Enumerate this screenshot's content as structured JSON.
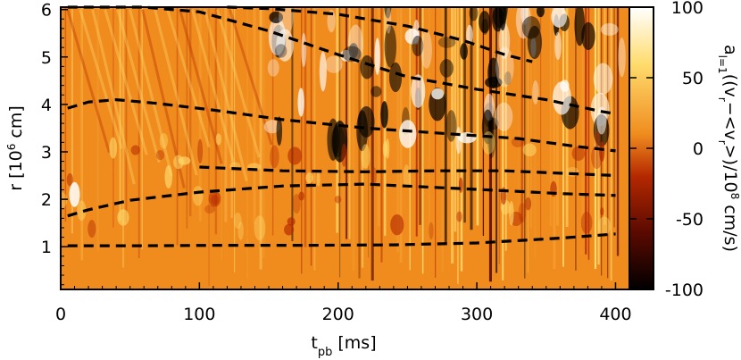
{
  "chart_data": {
    "type": "heatmap",
    "xlabel": "t_pb [ms]",
    "ylabel": "r [10^6 cm]",
    "colorbar_label": "a_l=1((v_r-<v_r>)/10^8 cm/s)",
    "x_ticks": [
      0,
      100,
      200,
      300,
      400
    ],
    "y_ticks": [
      1,
      2,
      3,
      4,
      5,
      6
    ],
    "colorbar_ticks": [
      100,
      50,
      0,
      -50,
      -100
    ],
    "xlim": [
      0,
      410
    ],
    "ylim": [
      0.1,
      6.05
    ],
    "clim": [
      -100,
      100
    ],
    "colormap": [
      "#000000",
      "#5a0a00",
      "#b42800",
      "#f08c1e",
      "#ffdc6e",
      "#ffffff"
    ],
    "background_value_color": "#f08c1e",
    "dashed_contours": [
      {
        "x": [
          5,
          60,
          120,
          180,
          240,
          300,
          360,
          400
        ],
        "y": [
          1.02,
          1.02,
          1.03,
          1.03,
          1.04,
          1.08,
          1.18,
          1.27
        ]
      },
      {
        "x": [
          5,
          20,
          50,
          100,
          160,
          220,
          270,
          320,
          360,
          400
        ],
        "y": [
          1.65,
          1.78,
          1.98,
          2.15,
          2.28,
          2.32,
          2.25,
          2.18,
          2.12,
          2.08
        ]
      },
      {
        "x": [
          100,
          160,
          220,
          270,
          320,
          360,
          400
        ],
        "y": [
          2.68,
          2.6,
          2.58,
          2.6,
          2.6,
          2.55,
          2.5
        ]
      },
      {
        "x": [
          5,
          20,
          40,
          70,
          110,
          160,
          220,
          280,
          330,
          370,
          400
        ],
        "y": [
          3.92,
          4.05,
          4.1,
          4.02,
          3.88,
          3.68,
          3.5,
          3.38,
          3.28,
          3.12,
          3.02
        ]
      },
      {
        "x": [
          5,
          30,
          60,
          100,
          150,
          200,
          250,
          300,
          350,
          390,
          400
        ],
        "y": [
          6.05,
          6.05,
          6.05,
          5.95,
          5.55,
          5.05,
          4.58,
          4.32,
          4.1,
          3.85,
          3.8
        ]
      },
      {
        "x": [
          120,
          150,
          200,
          250,
          290,
          320,
          340
        ],
        "y": [
          6.05,
          6.02,
          5.9,
          5.65,
          5.35,
          5.05,
          4.9
        ]
      }
    ]
  }
}
